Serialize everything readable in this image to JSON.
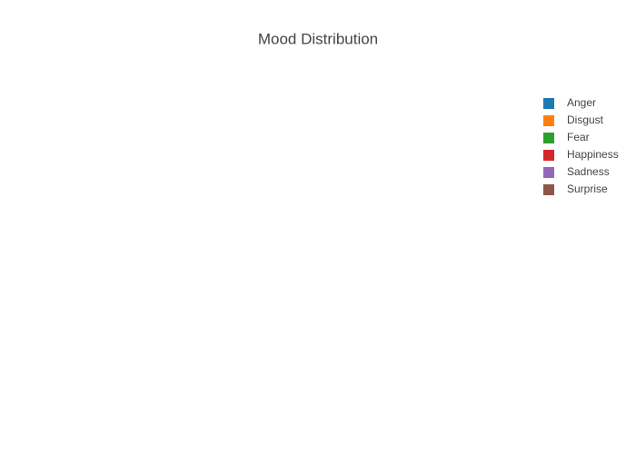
{
  "chart_data": {
    "type": "pie",
    "title": "Mood Distribution",
    "categories": [
      "Anger",
      "Disgust",
      "Fear",
      "Happiness",
      "Sadness",
      "Surprise"
    ],
    "colors": [
      "#1f77b4",
      "#ff7f0e",
      "#2ca02c",
      "#d62728",
      "#9467bd",
      "#8c564b"
    ],
    "legend": "top-right"
  }
}
